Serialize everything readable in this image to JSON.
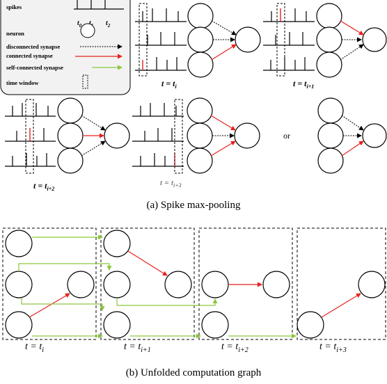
{
  "colors": {
    "connected": "#e8201c",
    "self_connected": "#8cc63f",
    "stroke": "#000000",
    "legend_bg": "#f2f2f2"
  },
  "legend": {
    "spikes": "spikes",
    "neuron": "neuron",
    "disconnected": "disconnected synapse",
    "connected": "connected synapse",
    "self_connected": "self-connected synapse",
    "time_window": "time window",
    "t0": "t",
    "t0_sub": "0",
    "t1": "t",
    "t1_sub": "1",
    "t2": "t",
    "t2_sub": "2"
  },
  "panel_a": {
    "labels": {
      "ti": "t = t",
      "ti_sub": "i",
      "ti1": "t = t",
      "ti1_sub": "i+1",
      "ti2": "t = t",
      "ti2_sub": "i+2",
      "ti3": "t = t",
      "ti3_sub": "i+3"
    },
    "or": "or",
    "caption": "(a)  Spike max-pooling"
  },
  "panel_b": {
    "labels": {
      "ti": "t = t",
      "ti_sub": "i",
      "ti1": "t = t",
      "ti1_sub": "i+1",
      "ti2": "t = t",
      "ti2_sub": "i+2",
      "ti3": "t = t",
      "ti3_sub": "i+3"
    },
    "caption": "(b)  Unfolded computation graph"
  }
}
